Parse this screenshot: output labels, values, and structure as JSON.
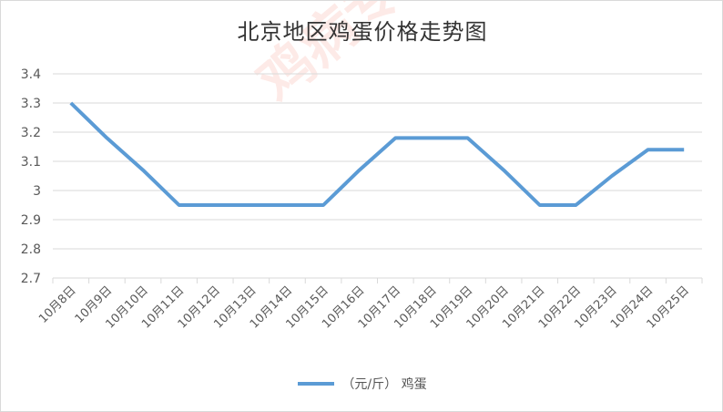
{
  "chart_data": {
    "type": "line",
    "title": "北京地区鸡蛋价格走势图",
    "categories": [
      "10月8日",
      "10月9日",
      "10月10日",
      "10月11日",
      "10月12日",
      "10月13日",
      "10月14日",
      "10月15日",
      "10月16日",
      "10月17日",
      "10月18日",
      "10月19日",
      "10月20日",
      "10月21日",
      "10月22日",
      "10月23日",
      "10月24日",
      "10月25日"
    ],
    "series": [
      {
        "name": "（元/斤） 鸡蛋",
        "values": [
          3.3,
          3.18,
          3.07,
          2.95,
          2.95,
          2.95,
          2.95,
          2.95,
          3.07,
          3.18,
          3.18,
          3.18,
          3.07,
          2.95,
          2.95,
          3.05,
          3.14,
          3.14
        ],
        "color": "#5b9bd5"
      }
    ],
    "ylim": [
      2.7,
      3.4
    ],
    "yticks": [
      "2.7",
      "2.8",
      "2.9",
      "3",
      "3.1",
      "3.2",
      "3.3",
      "3.4"
    ],
    "grid": true,
    "legend": "bottom"
  },
  "watermark": "鸡病专业网 www.jbzyw.com"
}
